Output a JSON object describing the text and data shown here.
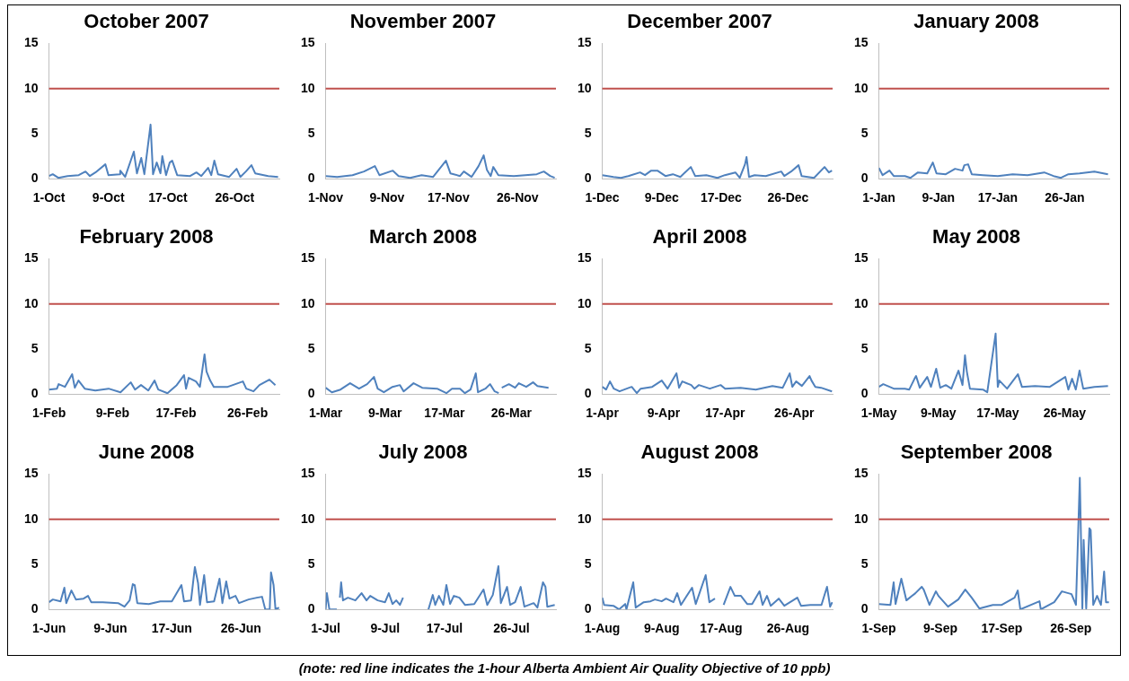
{
  "chart_data": [
    {
      "type": "line",
      "title": "October 2007",
      "color": "#4f81bd",
      "xlim": [
        "2007-10-01",
        "2007-11-01"
      ],
      "xticks": [
        {
          "value": "2007-10-01",
          "label": "1-Oct"
        },
        {
          "value": "2007-10-09",
          "label": "9-Oct"
        },
        {
          "value": "2007-10-17",
          "label": "17-Oct"
        },
        {
          "value": "2007-10-26",
          "label": "26-Oct"
        }
      ],
      "ylim": [
        0,
        15
      ],
      "yticks": [
        0,
        5,
        10,
        15
      ],
      "ref_lines": [
        {
          "axis": "y",
          "value": 10,
          "color": "#c0504d"
        }
      ],
      "x": [
        "2007-10-01T00:00",
        "2007-10-01T12:00",
        "2007-10-02T06:00",
        "2007-10-03T12:00",
        "2007-10-05T00:00",
        "2007-10-05T22:00",
        "2007-10-06T12:00",
        "2007-10-07T06:00",
        "2007-10-08T14:00",
        "2007-10-09T00:00",
        "2007-10-10T12:00",
        "2007-10-10T14:00",
        "2007-10-11T06:00",
        "2007-10-12T10:00",
        "2007-10-12T20:00",
        "2007-10-13T10:00",
        "2007-10-13T20:00",
        "2007-10-14T16:00",
        "2007-10-15T00:00",
        "2007-10-15T12:00",
        "2007-10-16T00:00",
        "2007-10-16T06:00",
        "2007-10-16T18:00",
        "2007-10-17T06:00",
        "2007-10-17T14:00",
        "2007-10-18T06:00",
        "2007-10-20T00:00",
        "2007-10-20T20:00",
        "2007-10-21T12:00",
        "2007-10-22T10:00",
        "2007-10-22T20:00",
        "2007-10-23T06:00",
        "2007-10-23T18:00",
        "2007-10-25T06:00",
        "2007-10-26T06:00",
        "2007-10-26T18:00",
        "2007-10-27T12:00",
        "2007-10-28T06:00",
        "2007-10-28T18:00",
        "2007-10-30T12:00",
        "2007-10-31T20:00"
      ],
      "values": [
        0.3,
        0.5,
        0.1,
        0.3,
        0.4,
        0.8,
        0.3,
        0.7,
        1.6,
        0.4,
        0.5,
        0.9,
        0.2,
        3.0,
        0.6,
        2.3,
        0.5,
        6.0,
        0.5,
        1.8,
        0.6,
        2.5,
        0.4,
        1.8,
        2.0,
        0.4,
        0.3,
        0.7,
        0.3,
        1.2,
        0.4,
        2.0,
        0.5,
        0.2,
        1.1,
        0.2,
        0.8,
        1.5,
        0.6,
        0.3,
        0.2
      ]
    },
    {
      "type": "line",
      "title": "November 2007",
      "color": "#4f81bd",
      "xlim": [
        "2007-11-01",
        "2007-12-01"
      ],
      "xticks": [
        {
          "value": "2007-11-01",
          "label": "1-Nov"
        },
        {
          "value": "2007-11-09",
          "label": "9-Nov"
        },
        {
          "value": "2007-11-17",
          "label": "17-Nov"
        },
        {
          "value": "2007-11-26",
          "label": "26-Nov"
        }
      ],
      "ylim": [
        0,
        15
      ],
      "yticks": [
        0,
        5,
        10,
        15
      ],
      "ref_lines": [
        {
          "axis": "y",
          "value": 10,
          "color": "#c0504d"
        }
      ],
      "x": [
        "2007-11-01T00:00",
        "2007-11-02T12:00",
        "2007-11-04T12:00",
        "2007-11-06T00:00",
        "2007-11-07T10:00",
        "2007-11-08T00:00",
        "2007-11-09T18:00",
        "2007-11-10T12:00",
        "2007-11-12T00:00",
        "2007-11-13T12:00",
        "2007-11-15T00:00",
        "2007-11-16T16:00",
        "2007-11-17T06:00",
        "2007-11-18T12:00",
        "2007-11-19T00:00",
        "2007-11-20T00:00",
        "2007-11-20T22:00",
        "2007-11-21T14:00",
        "2007-11-22T00:00",
        "2007-11-22T12:00",
        "2007-11-22T20:00",
        "2007-11-23T12:00",
        "2007-11-25T12:00",
        "2007-11-27T00:00",
        "2007-11-28T12:00",
        "2007-11-29T10:00",
        "2007-11-30T06:00",
        "2007-11-30T20:00"
      ],
      "values": [
        0.3,
        0.2,
        0.4,
        0.8,
        1.4,
        0.4,
        0.9,
        0.3,
        0.1,
        0.4,
        0.2,
        2.0,
        0.6,
        0.3,
        0.8,
        0.2,
        1.4,
        2.6,
        1.0,
        0.3,
        1.3,
        0.4,
        0.3,
        0.4,
        0.5,
        0.8,
        0.3,
        0.1
      ]
    },
    {
      "type": "line",
      "title": "December 2007",
      "color": "#4f81bd",
      "xlim": [
        "2007-12-01",
        "2008-01-01"
      ],
      "xticks": [
        {
          "value": "2007-12-01",
          "label": "1-Dec"
        },
        {
          "value": "2007-12-09",
          "label": "9-Dec"
        },
        {
          "value": "2007-12-17",
          "label": "17-Dec"
        },
        {
          "value": "2007-12-26",
          "label": "26-Dec"
        }
      ],
      "ylim": [
        0,
        15
      ],
      "yticks": [
        0,
        5,
        10,
        15
      ],
      "ref_lines": [
        {
          "axis": "y",
          "value": 10,
          "color": "#c0504d"
        }
      ],
      "x": [
        "2007-12-01T00:00",
        "2007-12-02T12:00",
        "2007-12-03T12:00",
        "2007-12-04T12:00",
        "2007-12-06T02:00",
        "2007-12-06T18:00",
        "2007-12-07T14:00",
        "2007-12-08T10:00",
        "2007-12-09T12:00",
        "2007-12-10T12:00",
        "2007-12-11T12:00",
        "2007-12-12T22:00",
        "2007-12-13T12:00",
        "2007-12-15T00:00",
        "2007-12-16T12:00",
        "2007-12-17T12:00",
        "2007-12-18T22:00",
        "2007-12-19T12:00",
        "2007-12-20T05:00",
        "2007-12-20T10:00",
        "2007-12-20T18:00",
        "2007-12-21T12:00",
        "2007-12-23T00:00",
        "2007-12-25T02:00",
        "2007-12-25T12:00",
        "2007-12-26T10:00",
        "2007-12-27T10:00",
        "2007-12-27T20:00",
        "2007-12-29T12:00",
        "2007-12-30T22:00",
        "2007-12-31T12:00",
        "2007-12-31T22:00"
      ],
      "values": [
        0.4,
        0.2,
        0.1,
        0.3,
        0.7,
        0.4,
        0.9,
        0.9,
        0.3,
        0.5,
        0.2,
        1.3,
        0.3,
        0.4,
        0.1,
        0.4,
        0.7,
        0.1,
        1.6,
        2.4,
        0.2,
        0.4,
        0.3,
        0.8,
        0.3,
        0.8,
        1.5,
        0.3,
        0.1,
        1.3,
        0.7,
        0.9
      ]
    },
    {
      "type": "line",
      "title": "January 2008",
      "color": "#4f81bd",
      "xlim": [
        "2008-01-01",
        "2008-02-01"
      ],
      "xticks": [
        {
          "value": "2008-01-01",
          "label": "1-Jan"
        },
        {
          "value": "2008-01-09",
          "label": "9-Jan"
        },
        {
          "value": "2008-01-17",
          "label": "17-Jan"
        },
        {
          "value": "2008-01-26",
          "label": "26-Jan"
        }
      ],
      "ylim": [
        0,
        15
      ],
      "yticks": [
        0,
        5,
        10,
        15
      ],
      "ref_lines": [
        {
          "axis": "y",
          "value": 10,
          "color": "#c0504d"
        }
      ],
      "x": [
        "2008-01-01T00:00",
        "2008-01-01T12:00",
        "2008-01-02T10:00",
        "2008-01-03T00:00",
        "2008-01-04T12:00",
        "2008-01-05T06:00",
        "2008-01-06T06:00",
        "2008-01-07T12:00",
        "2008-01-08T06:00",
        "2008-01-08T18:00",
        "2008-01-10T00:00",
        "2008-01-11T06:00",
        "2008-01-12T06:00",
        "2008-01-12T12:00",
        "2008-01-13T00:00",
        "2008-01-13T12:00",
        "2008-01-15T00:00",
        "2008-01-17T00:00",
        "2008-01-19T00:00",
        "2008-01-21T00:00",
        "2008-01-23T06:00",
        "2008-01-24T12:00",
        "2008-01-25T12:00",
        "2008-01-26T12:00",
        "2008-01-28T00:00",
        "2008-01-30T00:00",
        "2008-01-31T20:00"
      ],
      "values": [
        1.2,
        0.4,
        0.9,
        0.3,
        0.3,
        0.1,
        0.7,
        0.6,
        1.8,
        0.6,
        0.5,
        1.1,
        0.9,
        1.5,
        1.6,
        0.5,
        0.4,
        0.3,
        0.5,
        0.4,
        0.7,
        0.3,
        0.1,
        0.5,
        0.6,
        0.8,
        0.5
      ]
    },
    {
      "type": "line",
      "title": "February 2008",
      "color": "#4f81bd",
      "xlim": [
        "2008-02-01",
        "2008-03-01"
      ],
      "xticks": [
        {
          "value": "2008-02-01",
          "label": "1-Feb"
        },
        {
          "value": "2008-02-09",
          "label": "9-Feb"
        },
        {
          "value": "2008-02-17",
          "label": "17-Feb"
        },
        {
          "value": "2008-02-26",
          "label": "26-Feb"
        }
      ],
      "ylim": [
        0,
        15
      ],
      "yticks": [
        0,
        5,
        10,
        15
      ],
      "ref_lines": [
        {
          "axis": "y",
          "value": 10,
          "color": "#c0504d"
        }
      ],
      "x": [
        "2008-02-01T00:00",
        "2008-02-02T00:00",
        "2008-02-02T05:00",
        "2008-02-03T00:00",
        "2008-02-03T22:00",
        "2008-02-04T06:00",
        "2008-02-04T17:00",
        "2008-02-05T12:00",
        "2008-02-06T20:00",
        "2008-02-08T12:00",
        "2008-02-10T00:00",
        "2008-02-11T07:00",
        "2008-02-11T20:00",
        "2008-02-12T14:00",
        "2008-02-13T12:00",
        "2008-02-14T07:00",
        "2008-02-14T18:00",
        "2008-02-15T22:00",
        "2008-02-17T02:00",
        "2008-02-18T00:00",
        "2008-02-18T06:00",
        "2008-02-18T14:00",
        "2008-02-19T12:00",
        "2008-02-20T00:00",
        "2008-02-20T14:00",
        "2008-02-20T20:00",
        "2008-02-21T07:00",
        "2008-02-21T18:00",
        "2008-02-23T12:00",
        "2008-02-25T10:00",
        "2008-02-25T20:00",
        "2008-02-26T18:00",
        "2008-02-27T12:00",
        "2008-02-28T18:00",
        "2008-02-29T12:00"
      ],
      "values": [
        0.5,
        0.6,
        1.1,
        0.8,
        2.2,
        0.7,
        1.5,
        0.6,
        0.4,
        0.6,
        0.2,
        1.3,
        0.5,
        1.0,
        0.4,
        1.5,
        0.5,
        0.1,
        1.0,
        2.1,
        0.6,
        1.8,
        1.4,
        0.8,
        4.4,
        2.5,
        1.5,
        0.8,
        0.8,
        1.4,
        0.6,
        0.3,
        1.0,
        1.6,
        1.0
      ]
    },
    {
      "type": "line",
      "title": "March 2008",
      "color": "#4f81bd",
      "xlim": [
        "2008-03-01",
        "2008-04-01"
      ],
      "xticks": [
        {
          "value": "2008-03-01",
          "label": "1-Mar"
        },
        {
          "value": "2008-03-09",
          "label": "9-Mar"
        },
        {
          "value": "2008-03-17",
          "label": "17-Mar"
        },
        {
          "value": "2008-03-26",
          "label": "26-Mar"
        }
      ],
      "ylim": [
        0,
        15
      ],
      "yticks": [
        0,
        5,
        10,
        15
      ],
      "ref_lines": [
        {
          "axis": "y",
          "value": 10,
          "color": "#c0504d"
        }
      ],
      "x": [
        "2008-03-01T00:00",
        "2008-03-01T20:00",
        "2008-03-03T00:00",
        "2008-03-04T07:00",
        "2008-03-05T12:00",
        "2008-03-06T14:00",
        "2008-03-07T12:00",
        "2008-03-08T00:00",
        "2008-03-08T20:00",
        "2008-03-10T00:00",
        "2008-03-11T00:00",
        "2008-03-11T12:00",
        "2008-03-12T20:00",
        "2008-03-14T00:00",
        "2008-03-16T00:00",
        "2008-03-17T06:00",
        "2008-03-18T00:00",
        "2008-03-19T02:00",
        "2008-03-19T18:00",
        "2008-03-20T12:00",
        "2008-03-21T05:00",
        "2008-03-21T12:00",
        "2008-03-22T12:00",
        "2008-03-23T03:00",
        "2008-03-23T18:00",
        "2008-03-24T07:00",
        "2008-03-24T12:00",
        "2008-03-24T17:00",
        "2008-03-25T16:00",
        "2008-03-26T12:00",
        "2008-03-27T00:00",
        "2008-03-28T00:00",
        "2008-03-28T22:00",
        "2008-03-29T12:00",
        "2008-03-31T00:00"
      ],
      "values": [
        0.7,
        0.2,
        0.5,
        1.2,
        0.6,
        1.1,
        1.9,
        0.6,
        0.2,
        0.8,
        1.0,
        0.3,
        1.2,
        0.7,
        0.6,
        0.1,
        0.6,
        0.6,
        0.1,
        0.5,
        2.3,
        0.2,
        0.6,
        1.1,
        0.3,
        0.1,
        null,
        0.7,
        1.1,
        0.7,
        1.2,
        0.8,
        1.3,
        0.9,
        0.7
      ]
    },
    {
      "type": "line",
      "title": "April 2008",
      "color": "#4f81bd",
      "xlim": [
        "2008-04-01",
        "2008-05-01"
      ],
      "xticks": [
        {
          "value": "2008-04-01",
          "label": "1-Apr"
        },
        {
          "value": "2008-04-09",
          "label": "9-Apr"
        },
        {
          "value": "2008-04-17",
          "label": "17-Apr"
        },
        {
          "value": "2008-04-26",
          "label": "26-Apr"
        }
      ],
      "ylim": [
        0,
        15
      ],
      "yticks": [
        0,
        5,
        10,
        15
      ],
      "ref_lines": [
        {
          "axis": "y",
          "value": 10,
          "color": "#c0504d"
        }
      ],
      "x": [
        "2008-04-01T00:00",
        "2008-04-01T12:00",
        "2008-04-02T00:00",
        "2008-04-02T12:00",
        "2008-04-03T06:00",
        "2008-04-04T12:00",
        "2008-04-04T20:00",
        "2008-04-05T12:00",
        "2008-04-06T00:00",
        "2008-04-07T12:00",
        "2008-04-08T18:00",
        "2008-04-09T12:00",
        "2008-04-10T16:00",
        "2008-04-11T00:00",
        "2008-04-11T10:00",
        "2008-04-12T14:00",
        "2008-04-13T00:00",
        "2008-04-13T14:00",
        "2008-04-15T00:00",
        "2008-04-16T10:00",
        "2008-04-17T00:00",
        "2008-04-19T00:00",
        "2008-04-21T00:00",
        "2008-04-23T04:00",
        "2008-04-24T12:00",
        "2008-04-25T10:00",
        "2008-04-25T18:00",
        "2008-04-26T06:00",
        "2008-04-27T00:00",
        "2008-04-28T00:00",
        "2008-04-28T06:00",
        "2008-04-28T18:00",
        "2008-04-29T12:00",
        "2008-04-30T22:00"
      ],
      "values": [
        0.8,
        0.5,
        1.4,
        0.6,
        0.3,
        0.7,
        0.8,
        0.1,
        0.6,
        0.8,
        1.5,
        0.6,
        2.3,
        0.7,
        1.4,
        1.0,
        0.6,
        1.0,
        0.6,
        1.0,
        0.6,
        0.7,
        0.5,
        0.9,
        0.7,
        2.3,
        0.8,
        1.4,
        0.9,
        2.0,
        1.5,
        0.8,
        0.7,
        0.3
      ]
    },
    {
      "type": "line",
      "title": "May 2008",
      "color": "#4f81bd",
      "xlim": [
        "2008-05-01",
        "2008-06-01"
      ],
      "xticks": [
        {
          "value": "2008-05-01",
          "label": "1-May"
        },
        {
          "value": "2008-05-09",
          "label": "9-May"
        },
        {
          "value": "2008-05-17",
          "label": "17-May"
        },
        {
          "value": "2008-05-26",
          "label": "26-May"
        }
      ],
      "ylim": [
        0,
        15
      ],
      "yticks": [
        0,
        5,
        10,
        15
      ],
      "ref_lines": [
        {
          "axis": "y",
          "value": 10,
          "color": "#c0504d"
        }
      ],
      "x": [
        "2008-05-01T00:00",
        "2008-05-01T14:00",
        "2008-05-03T00:00",
        "2008-05-04T12:00",
        "2008-05-05T02:00",
        "2008-05-05T19:00",
        "2008-05-06T00:00",
        "2008-05-06T12:00",
        "2008-05-07T12:00",
        "2008-05-08T00:00",
        "2008-05-08T17:00",
        "2008-05-09T06:00",
        "2008-05-10T00:00",
        "2008-05-10T18:00",
        "2008-05-11T17:00",
        "2008-05-12T06:00",
        "2008-05-12T14:00",
        "2008-05-12T20:00",
        "2008-05-13T06:00",
        "2008-05-15T00:00",
        "2008-05-15T14:00",
        "2008-05-16T17:00",
        "2008-05-17T00:00",
        "2008-05-17T05:00",
        "2008-05-18T06:00",
        "2008-05-19T17:00",
        "2008-05-20T06:00",
        "2008-05-22T00:00",
        "2008-05-24T00:00",
        "2008-05-26T02:00",
        "2008-05-26T12:00",
        "2008-05-27T00:00",
        "2008-05-27T12:00",
        "2008-05-28T00:00",
        "2008-05-28T12:00",
        "2008-05-30T00:00",
        "2008-05-31T20:00"
      ],
      "values": [
        0.8,
        1.1,
        0.6,
        0.6,
        0.5,
        1.7,
        2.0,
        0.7,
        1.9,
        0.8,
        2.8,
        0.7,
        1.0,
        0.6,
        2.6,
        1.0,
        4.3,
        2.5,
        0.6,
        0.5,
        0.2,
        6.7,
        0.8,
        1.5,
        0.6,
        2.2,
        0.8,
        0.9,
        0.8,
        1.9,
        0.5,
        1.7,
        0.5,
        2.6,
        0.6,
        0.8,
        0.9
      ]
    },
    {
      "type": "line",
      "title": "June 2008",
      "color": "#4f81bd",
      "xlim": [
        "2008-06-01",
        "2008-07-01"
      ],
      "xticks": [
        {
          "value": "2008-06-01",
          "label": "1-Jun"
        },
        {
          "value": "2008-06-09",
          "label": "9-Jun"
        },
        {
          "value": "2008-06-17",
          "label": "17-Jun"
        },
        {
          "value": "2008-06-26",
          "label": "26-Jun"
        }
      ],
      "ylim": [
        0,
        15
      ],
      "yticks": [
        0,
        5,
        10,
        15
      ],
      "ref_lines": [
        {
          "axis": "y",
          "value": 10,
          "color": "#c0504d"
        }
      ],
      "x": [
        "2008-06-01T00:00",
        "2008-06-01T12:00",
        "2008-06-02T12:00",
        "2008-06-03T00:00",
        "2008-06-03T06:00",
        "2008-06-03T22:00",
        "2008-06-04T12:00",
        "2008-06-05T12:00",
        "2008-06-06T02:00",
        "2008-06-06T12:00",
        "2008-06-08T00:00",
        "2008-06-10T00:00",
        "2008-06-10T20:00",
        "2008-06-11T12:00",
        "2008-06-11T22:00",
        "2008-06-12T04:00",
        "2008-06-12T12:00",
        "2008-06-14T00:00",
        "2008-06-15T12:00",
        "2008-06-17T00:00",
        "2008-06-18T06:00",
        "2008-06-18T14:00",
        "2008-06-19T12:00",
        "2008-06-20T00:00",
        "2008-06-20T10:00",
        "2008-06-20T16:00",
        "2008-06-21T05:00",
        "2008-06-21T14:00",
        "2008-06-22T12:00",
        "2008-06-23T05:00",
        "2008-06-23T14:00",
        "2008-06-24T02:00",
        "2008-06-24T12:00",
        "2008-06-25T07:00",
        "2008-06-25T18:00",
        "2008-06-27T00:00",
        "2008-06-28T02:00",
        "2008-06-28T18:00",
        "2008-06-29T04:00",
        "2008-06-29T18:00",
        "2008-06-29T22:00",
        "2008-06-30T06:00",
        "2008-06-30T12:00",
        "2008-06-30T23:00"
      ],
      "values": [
        0.8,
        1.1,
        0.9,
        2.4,
        0.7,
        2.1,
        1.1,
        1.2,
        1.5,
        0.8,
        0.8,
        0.7,
        0.3,
        1.0,
        2.8,
        2.7,
        0.7,
        0.6,
        0.9,
        0.9,
        2.7,
        0.9,
        1.0,
        4.7,
        2.9,
        0.5,
        3.8,
        0.8,
        0.9,
        3.4,
        0.7,
        3.1,
        1.2,
        1.5,
        0.7,
        1.1,
        1.3,
        1.4,
        0.0,
        0.0,
        4.1,
        2.7,
        0.0,
        0.2
      ]
    },
    {
      "type": "line",
      "title": "July 2008",
      "color": "#4f81bd",
      "xlim": [
        "2008-07-01",
        "2008-08-01"
      ],
      "xticks": [
        {
          "value": "2008-07-01",
          "label": "1-Jul"
        },
        {
          "value": "2008-07-09",
          "label": "9-Jul"
        },
        {
          "value": "2008-07-17",
          "label": "17-Jul"
        },
        {
          "value": "2008-07-26",
          "label": "26-Jul"
        }
      ],
      "ylim": [
        0,
        15
      ],
      "yticks": [
        0,
        5,
        10,
        15
      ],
      "ref_lines": [
        {
          "axis": "y",
          "value": 10,
          "color": "#c0504d"
        }
      ],
      "x": [
        "2008-07-01T00:00",
        "2008-07-01T04:00",
        "2008-07-01T12:00",
        "2008-07-02T12:00",
        "2008-07-02T16:00",
        "2008-07-02T22:00",
        "2008-07-03T02:00",
        "2008-07-03T08:00",
        "2008-07-04T00:00",
        "2008-07-05T00:00",
        "2008-07-05T20:00",
        "2008-07-06T12:00",
        "2008-07-07T00:00",
        "2008-07-08T00:00",
        "2008-07-09T00:00",
        "2008-07-09T12:00",
        "2008-07-10T00:00",
        "2008-07-10T12:00",
        "2008-07-11T00:00",
        "2008-07-11T10:00",
        "2008-07-11T12:00",
        "2008-07-14T20:00",
        "2008-07-15T10:00",
        "2008-07-15T18:00",
        "2008-07-16T06:00",
        "2008-07-16T20:00",
        "2008-07-17T06:00",
        "2008-07-17T18:00",
        "2008-07-18T06:00",
        "2008-07-19T00:00",
        "2008-07-19T18:00",
        "2008-07-21T00:00",
        "2008-07-22T06:00",
        "2008-07-22T18:00",
        "2008-07-23T12:00",
        "2008-07-24T06:00",
        "2008-07-24T14:00",
        "2008-07-25T10:00",
        "2008-07-25T20:00",
        "2008-07-26T12:00",
        "2008-07-27T06:00",
        "2008-07-27T18:00",
        "2008-07-29T00:00",
        "2008-07-29T12:00",
        "2008-07-30T06:00",
        "2008-07-30T14:00",
        "2008-07-30T20:00",
        "2008-07-31T20:00"
      ],
      "values": [
        0.0,
        1.8,
        0.0,
        0.0,
        null,
        1.3,
        3.0,
        1.0,
        1.3,
        1.0,
        1.8,
        1.0,
        1.5,
        1.0,
        0.8,
        1.8,
        0.6,
        1.0,
        0.5,
        1.3,
        null,
        0.0,
        1.6,
        0.5,
        1.5,
        0.5,
        2.7,
        0.6,
        1.5,
        1.3,
        0.5,
        0.6,
        2.2,
        0.5,
        1.6,
        4.8,
        0.7,
        2.5,
        0.5,
        0.8,
        2.5,
        0.3,
        0.7,
        0.2,
        3.0,
        2.5,
        0.3,
        0.5
      ]
    },
    {
      "type": "line",
      "title": "August 2008",
      "color": "#4f81bd",
      "xlim": [
        "2008-08-01",
        "2008-09-01"
      ],
      "xticks": [
        {
          "value": "2008-08-01",
          "label": "1-Aug"
        },
        {
          "value": "2008-08-09",
          "label": "9-Aug"
        },
        {
          "value": "2008-08-17",
          "label": "17-Aug"
        },
        {
          "value": "2008-08-26",
          "label": "26-Aug"
        }
      ],
      "ylim": [
        0,
        15
      ],
      "yticks": [
        0,
        5,
        10,
        15
      ],
      "ref_lines": [
        {
          "axis": "y",
          "value": 10,
          "color": "#c0504d"
        }
      ],
      "x": [
        "2008-08-01T00:00",
        "2008-08-01T06:00",
        "2008-08-02T12:00",
        "2008-08-03T06:00",
        "2008-08-04T02:00",
        "2008-08-04T06:00",
        "2008-08-05T04:00",
        "2008-08-05T12:00",
        "2008-08-06T14:00",
        "2008-08-07T12:00",
        "2008-08-08T02:00",
        "2008-08-09T00:00",
        "2008-08-09T14:00",
        "2008-08-10T14:00",
        "2008-08-11T02:00",
        "2008-08-11T14:00",
        "2008-08-13T02:00",
        "2008-08-13T14:00",
        "2008-08-14T22:00",
        "2008-08-15T10:00",
        "2008-08-16T04:00",
        "2008-08-16T06:00",
        "2008-08-17T08:00",
        "2008-08-18T06:00",
        "2008-08-18T20:00",
        "2008-08-19T16:00",
        "2008-08-20T12:00",
        "2008-08-21T04:00",
        "2008-08-22T04:00",
        "2008-08-22T14:00",
        "2008-08-23T04:00",
        "2008-08-23T16:00",
        "2008-08-24T18:00",
        "2008-08-25T12:00",
        "2008-08-27T06:00",
        "2008-08-27T18:00",
        "2008-08-29T00:00",
        "2008-08-30T12:00",
        "2008-08-31T06:00",
        "2008-08-31T16:00",
        "2008-08-31T23:00"
      ],
      "values": [
        1.3,
        0.5,
        0.4,
        0.0,
        0.6,
        0.0,
        3.0,
        0.2,
        0.8,
        0.9,
        1.1,
        0.9,
        1.2,
        0.8,
        1.8,
        0.5,
        2.4,
        0.6,
        3.8,
        0.8,
        1.2,
        null,
        0.5,
        2.5,
        1.5,
        1.5,
        0.6,
        0.6,
        2.0,
        0.5,
        1.5,
        0.4,
        1.2,
        0.4,
        1.3,
        0.4,
        0.5,
        0.5,
        2.5,
        0.3,
        0.8
      ]
    },
    {
      "type": "line",
      "title": "September 2008",
      "color": "#4f81bd",
      "xlim": [
        "2008-09-01",
        "2008-10-01"
      ],
      "xticks": [
        {
          "value": "2008-09-01",
          "label": "1-Sep"
        },
        {
          "value": "2008-09-09",
          "label": "9-Sep"
        },
        {
          "value": "2008-09-17",
          "label": "17-Sep"
        },
        {
          "value": "2008-09-26",
          "label": "26-Sep"
        }
      ],
      "ylim": [
        0,
        15
      ],
      "yticks": [
        0,
        5,
        10,
        15
      ],
      "ref_lines": [
        {
          "axis": "y",
          "value": 10,
          "color": "#c0504d"
        }
      ],
      "annotations": [
        "(note: red line indicates the 1-hour Alberta Ambient Air Quality Objective of 10 ppb)"
      ],
      "x": [
        "2008-09-01T00:00",
        "2008-09-02T12:00",
        "2008-09-02T22:00",
        "2008-09-03T04:00",
        "2008-09-03T22:00",
        "2008-09-04T14:00",
        "2008-09-05T18:00",
        "2008-09-06T14:00",
        "2008-09-06T20:00",
        "2008-09-07T14:00",
        "2008-09-08T10:00",
        "2008-09-08T18:00",
        "2008-09-10T00:00",
        "2008-09-11T08:00",
        "2008-09-12T06:00",
        "2008-09-13T02:00",
        "2008-09-14T02:00",
        "2008-09-15T20:00",
        "2008-09-17T00:00",
        "2008-09-18T16:00",
        "2008-09-19T02:00",
        "2008-09-19T10:00",
        "2008-09-21T22:00",
        "2008-09-22T02:00",
        "2008-09-23T20:00",
        "2008-09-24T20:00",
        "2008-09-26T02:00",
        "2008-09-26T16:00",
        "2008-09-27T04:00",
        "2008-09-27T12:00",
        "2008-09-27T16:00",
        "2008-09-28T00:00",
        "2008-09-28T10:00",
        "2008-09-28T14:00",
        "2008-09-28T22:00",
        "2008-09-29T10:00",
        "2008-09-29T22:00",
        "2008-09-30T08:00",
        "2008-09-30T14:00",
        "2008-09-30T23:00"
      ],
      "values": [
        0.6,
        0.5,
        3.0,
        0.6,
        3.4,
        1.0,
        1.8,
        2.5,
        2.2,
        0.5,
        2.0,
        1.5,
        0.3,
        1.1,
        2.2,
        1.3,
        0.1,
        0.5,
        0.5,
        1.3,
        2.1,
        0.0,
        0.9,
        0.0,
        0.8,
        2.0,
        1.7,
        0.5,
        14.6,
        0.1,
        7.7,
        0.1,
        9.0,
        8.8,
        0.5,
        1.5,
        0.5,
        4.2,
        0.8,
        0.8
      ]
    }
  ]
}
